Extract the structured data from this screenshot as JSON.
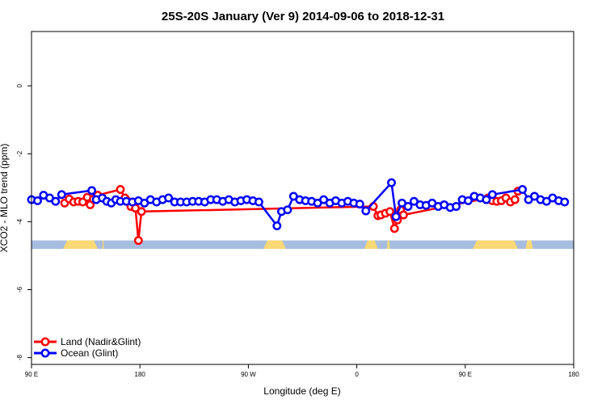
{
  "chart_data": {
    "type": "line",
    "title": "25S-20S January (Ver 9)   2014-09-06 to 2018-12-31",
    "xlabel": "Longitude (deg E)",
    "ylabel": "XCO2 - MLO trend (ppm)",
    "xlim": [
      90,
      450
    ],
    "ylim": [
      -8.2,
      1.6
    ],
    "x_ticks": [
      {
        "value": 90,
        "label": "90 E"
      },
      {
        "value": 162,
        "label": "180"
      },
      {
        "value": 234,
        "label": "90 W"
      },
      {
        "value": 306,
        "label": "0"
      },
      {
        "value": 378,
        "label": "90 E"
      },
      {
        "value": 450,
        "label": "180"
      }
    ],
    "y_ticks": [
      {
        "value": 0,
        "label": "0"
      },
      {
        "value": -2,
        "label": "-2"
      },
      {
        "value": -4,
        "label": "-4"
      },
      {
        "value": -6,
        "label": "-6"
      },
      {
        "value": -8,
        "label": "-8"
      }
    ],
    "grid": false,
    "legend_position": "bottom-left",
    "land_band": {
      "y_top": -4.55,
      "y_bottom": -4.8,
      "ocean_color": "#a7bddf",
      "land_color": "#f9d876",
      "land_spans": [
        [
          111,
          134
        ],
        [
          137,
          138
        ],
        [
          244,
          259
        ],
        [
          311,
          320
        ],
        [
          326,
          328
        ],
        [
          383,
          413
        ],
        [
          418,
          423
        ]
      ]
    },
    "series": [
      {
        "name": "Land (Nadir&Glint)",
        "color": "#ff0000",
        "points": [
          [
            112,
            -3.45
          ],
          [
            115,
            -3.33
          ],
          [
            118,
            -3.42
          ],
          [
            121,
            -3.4
          ],
          [
            124,
            -3.42
          ],
          [
            127,
            -3.28
          ],
          [
            129,
            -3.5
          ],
          [
            131,
            -3.34
          ],
          [
            134,
            -3.22
          ],
          [
            149,
            -3.05
          ],
          [
            152,
            -3.3
          ],
          [
            154,
            -3.4
          ],
          [
            156,
            -3.55
          ],
          [
            159,
            -3.6
          ],
          [
            161,
            -4.55
          ],
          [
            163,
            -3.7
          ],
          [
            317,
            -3.55
          ],
          [
            320,
            -3.82
          ],
          [
            322,
            -3.8
          ],
          [
            325,
            -3.75
          ],
          [
            328,
            -3.7
          ],
          [
            331,
            -4.2
          ],
          [
            333,
            -3.95
          ],
          [
            335,
            -3.65
          ],
          [
            337,
            -3.8
          ],
          [
            393,
            -3.3
          ],
          [
            396,
            -3.38
          ],
          [
            399,
            -3.4
          ],
          [
            402,
            -3.38
          ],
          [
            405,
            -3.3
          ],
          [
            408,
            -3.42
          ],
          [
            411,
            -3.35
          ],
          [
            413,
            -3.1
          ]
        ]
      },
      {
        "name": "Ocean (Glint)",
        "color": "#0000ff",
        "points": [
          [
            90,
            -3.35
          ],
          [
            94,
            -3.38
          ],
          [
            98,
            -3.22
          ],
          [
            102,
            -3.3
          ],
          [
            106,
            -3.4
          ],
          [
            110,
            -3.2
          ],
          [
            130,
            -3.08
          ],
          [
            133,
            -3.35
          ],
          [
            137,
            -3.3
          ],
          [
            140,
            -3.4
          ],
          [
            143,
            -3.45
          ],
          [
            146,
            -3.35
          ],
          [
            149,
            -3.4
          ],
          [
            153,
            -3.4
          ],
          [
            157,
            -3.42
          ],
          [
            161,
            -3.38
          ],
          [
            165,
            -3.45
          ],
          [
            169,
            -3.35
          ],
          [
            173,
            -3.42
          ],
          [
            177,
            -3.35
          ],
          [
            181,
            -3.3
          ],
          [
            185,
            -3.42
          ],
          [
            189,
            -3.42
          ],
          [
            193,
            -3.42
          ],
          [
            197,
            -3.4
          ],
          [
            201,
            -3.4
          ],
          [
            205,
            -3.42
          ],
          [
            209,
            -3.35
          ],
          [
            213,
            -3.35
          ],
          [
            217,
            -3.4
          ],
          [
            221,
            -3.35
          ],
          [
            225,
            -3.42
          ],
          [
            229,
            -3.38
          ],
          [
            233,
            -3.35
          ],
          [
            237,
            -3.38
          ],
          [
            241,
            -3.42
          ],
          [
            253,
            -4.12
          ],
          [
            256,
            -3.7
          ],
          [
            260,
            -3.65
          ],
          [
            264,
            -3.25
          ],
          [
            268,
            -3.35
          ],
          [
            272,
            -3.38
          ],
          [
            276,
            -3.4
          ],
          [
            280,
            -3.45
          ],
          [
            284,
            -3.35
          ],
          [
            288,
            -3.45
          ],
          [
            292,
            -3.38
          ],
          [
            296,
            -3.45
          ],
          [
            300,
            -3.4
          ],
          [
            304,
            -3.45
          ],
          [
            308,
            -3.48
          ],
          [
            312,
            -3.68
          ],
          [
            329,
            -2.85
          ],
          [
            332,
            -3.85
          ],
          [
            336,
            -3.45
          ],
          [
            340,
            -3.55
          ],
          [
            344,
            -3.4
          ],
          [
            348,
            -3.5
          ],
          [
            352,
            -3.52
          ],
          [
            356,
            -3.45
          ],
          [
            360,
            -3.55
          ],
          [
            364,
            -3.5
          ],
          [
            368,
            -3.58
          ],
          [
            372,
            -3.55
          ],
          [
            376,
            -3.35
          ],
          [
            380,
            -3.38
          ],
          [
            384,
            -3.25
          ],
          [
            388,
            -3.3
          ],
          [
            392,
            -3.35
          ],
          [
            396,
            -3.2
          ],
          [
            416,
            -3.05
          ],
          [
            420,
            -3.35
          ],
          [
            424,
            -3.25
          ],
          [
            428,
            -3.35
          ],
          [
            432,
            -3.4
          ],
          [
            436,
            -3.3
          ],
          [
            440,
            -3.38
          ],
          [
            444,
            -3.42
          ]
        ]
      }
    ]
  }
}
